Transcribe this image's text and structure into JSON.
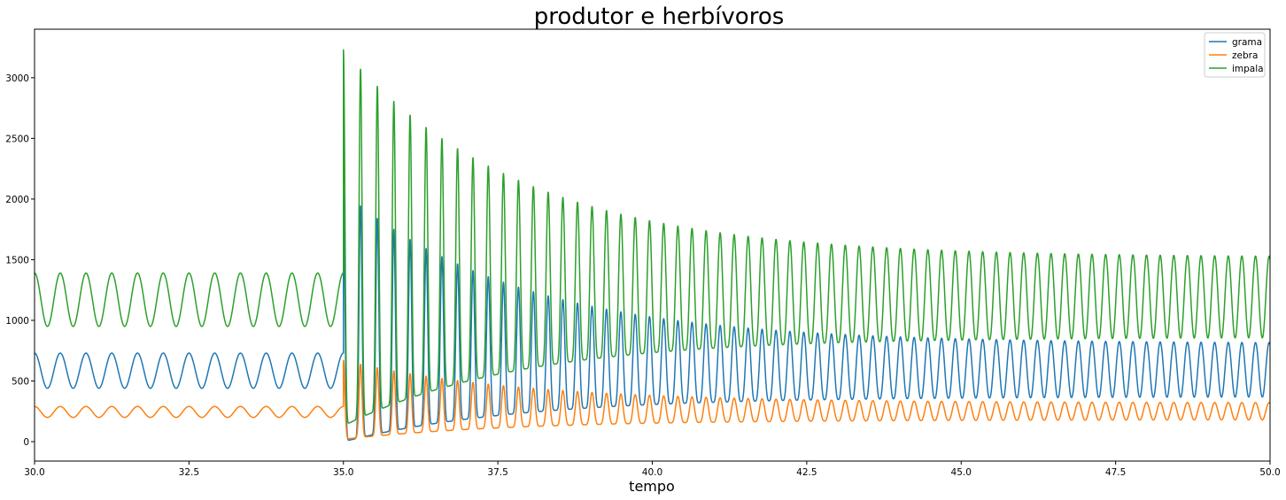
{
  "chart_data": {
    "type": "line",
    "title": "produtor e herbívoros",
    "xlabel": "tempo",
    "ylabel": "",
    "xlim": [
      30.0,
      50.0
    ],
    "ylim": [
      -160,
      3400
    ],
    "xticks": [
      "30.0",
      "32.5",
      "35.0",
      "37.5",
      "40.0",
      "42.5",
      "45.0",
      "47.5",
      "50.0"
    ],
    "xtick_values": [
      30.0,
      32.5,
      35.0,
      37.5,
      40.0,
      42.5,
      45.0,
      47.5,
      50.0
    ],
    "yticks": [
      "0",
      "500",
      "1000",
      "1500",
      "2000",
      "2500",
      "3000"
    ],
    "ytick_values": [
      0,
      500,
      1000,
      1500,
      2000,
      2500,
      3000
    ],
    "grid": false,
    "legend_position": "top-right",
    "perturbation_time": 35.0,
    "series": [
      {
        "name": "grama",
        "color": "#1f77b4",
        "phase1": {
          "min": 440,
          "max": 730,
          "cycles_per_unit": 2.4
        },
        "phase2": {
          "first_peak": 2060,
          "late_peak": 810,
          "first_trough": 0,
          "late_trough": 370,
          "first_period": 0.28,
          "late_period": 0.22
        }
      },
      {
        "name": "zebra",
        "color": "#ff7f0e",
        "phase1": {
          "min": 200,
          "max": 290,
          "cycles_per_unit": 2.4
        },
        "phase2": {
          "first_peak": 670,
          "late_peak": 320,
          "first_trough": 20,
          "late_trough": 180,
          "first_period": 0.28,
          "late_period": 0.22
        }
      },
      {
        "name": "impala",
        "color": "#2ca02c",
        "phase1": {
          "min": 950,
          "max": 1390,
          "cycles_per_unit": 2.4
        },
        "phase2": {
          "first_peak": 3230,
          "late_peak": 1520,
          "first_trough": 130,
          "late_trough": 860,
          "first_period": 0.28,
          "late_period": 0.22
        }
      }
    ]
  }
}
